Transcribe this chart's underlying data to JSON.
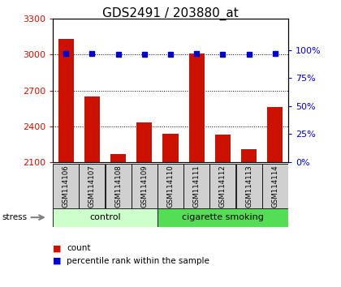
{
  "title": "GDS2491 / 203880_at",
  "samples": [
    "GSM114106",
    "GSM114107",
    "GSM114108",
    "GSM114109",
    "GSM114110",
    "GSM114111",
    "GSM114112",
    "GSM114113",
    "GSM114114"
  ],
  "counts": [
    3130,
    2650,
    2170,
    2430,
    2340,
    3010,
    2330,
    2210,
    2560
  ],
  "percentiles": [
    97,
    97,
    96,
    96,
    96,
    97,
    96,
    96,
    97
  ],
  "groups": [
    {
      "label": "control",
      "indices": [
        0,
        1,
        2,
        3
      ],
      "color": "#ccffcc"
    },
    {
      "label": "cigarette smoking",
      "indices": [
        4,
        5,
        6,
        7,
        8
      ],
      "color": "#55dd55"
    }
  ],
  "ylim": [
    2100,
    3300
  ],
  "yticks": [
    2100,
    2400,
    2700,
    3000,
    3300
  ],
  "y2lim": [
    0,
    128
  ],
  "y2ticks": [
    0,
    25,
    50,
    75,
    100
  ],
  "y2labels": [
    "0%",
    "25%",
    "50%",
    "75%",
    "100%"
  ],
  "bar_color": "#cc1100",
  "dot_color": "#0000cc",
  "bar_width": 0.6,
  "legend_count_label": "count",
  "legend_pct_label": "percentile rank within the sample",
  "title_fontsize": 11,
  "tick_fontsize": 8,
  "label_fontsize": 8
}
